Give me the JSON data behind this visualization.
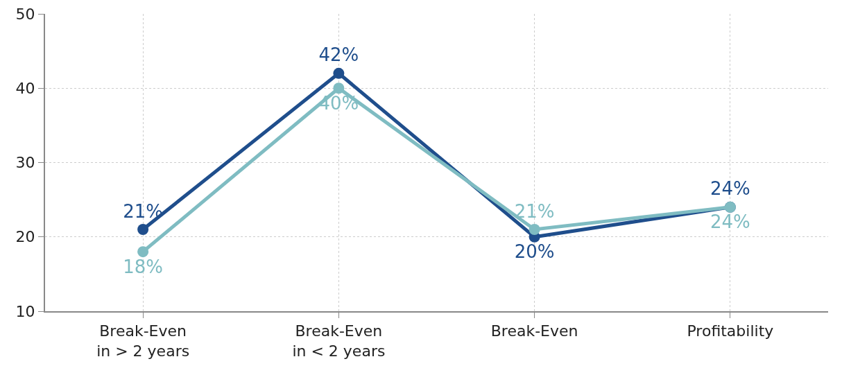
{
  "chart_data": {
    "type": "line",
    "categories": [
      "Break-Even in > 2 years",
      "Break-Even in < 2 years",
      "Break-Even",
      "Profitability"
    ],
    "series": [
      {
        "color": "#1f4e8c",
        "values": [
          21,
          42,
          20,
          24
        ],
        "value_labels": [
          "21%",
          "42%",
          "20%",
          "24%"
        ]
      },
      {
        "color": "#7fbcc2",
        "values": [
          18,
          40,
          21,
          24
        ],
        "value_labels": [
          "18%",
          "40%",
          "21%",
          "24%"
        ]
      }
    ],
    "ylim": [
      10,
      50
    ],
    "yticks": [
      10,
      20,
      30,
      40,
      50
    ],
    "grid": true,
    "marker": "circle",
    "line_style": "solid"
  }
}
